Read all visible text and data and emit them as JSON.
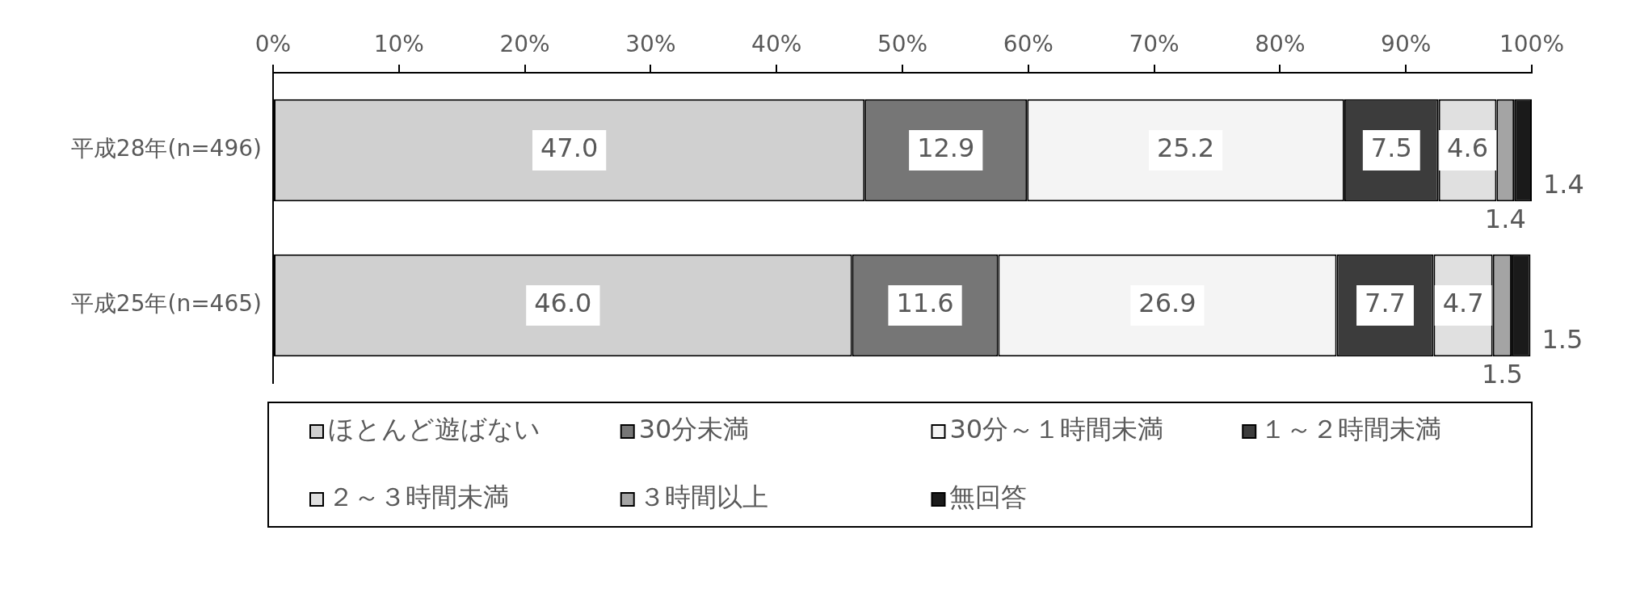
{
  "chart_data": {
    "type": "bar",
    "orientation": "horizontal",
    "stacked": true,
    "categories": [
      "平成28年(n=496)",
      "平成25年(n=465)"
    ],
    "series": [
      {
        "name": "ほとんど遊ばない",
        "color": "#d0d0d0",
        "values": [
          47.0,
          46.0
        ],
        "value_labels": [
          "47.0",
          "46.0"
        ]
      },
      {
        "name": "30分未満",
        "color": "#767676",
        "values": [
          12.9,
          11.6
        ],
        "value_labels": [
          "12.9",
          "11.6"
        ]
      },
      {
        "name": "30分～１時間未満",
        "color": "#f4f4f4",
        "values": [
          25.2,
          26.9
        ],
        "value_labels": [
          "25.2",
          "26.9"
        ]
      },
      {
        "name": "１～２時間未満",
        "color": "#3c3c3c",
        "values": [
          7.5,
          7.7
        ],
        "value_labels": [
          "7.5",
          "7.7"
        ]
      },
      {
        "name": "２～３時間未満",
        "color": "#e0e0e0",
        "values": [
          4.6,
          4.7
        ],
        "value_labels": [
          "4.6",
          "4.7"
        ]
      },
      {
        "name": "３時間以上",
        "color": "#a4a4a4",
        "values": [
          1.4,
          1.5
        ],
        "value_labels": [
          "1.4",
          "1.5"
        ]
      },
      {
        "name": "無回答",
        "color": "#1a1a1a",
        "values": [
          1.4,
          1.5
        ],
        "value_labels": [
          "1.4",
          "1.5"
        ]
      }
    ],
    "xlim": [
      0,
      100
    ],
    "xticks": [
      {
        "value": 0,
        "label": "0%"
      },
      {
        "value": 10,
        "label": "10%"
      },
      {
        "value": 20,
        "label": "20%"
      },
      {
        "value": 30,
        "label": "30%"
      },
      {
        "value": 40,
        "label": "40%"
      },
      {
        "value": 50,
        "label": "50%"
      },
      {
        "value": 60,
        "label": "60%"
      },
      {
        "value": 70,
        "label": "70%"
      },
      {
        "value": 80,
        "label": "80%"
      },
      {
        "value": 90,
        "label": "90%"
      },
      {
        "value": 100,
        "label": "100%"
      }
    ],
    "legend": "bottom"
  }
}
